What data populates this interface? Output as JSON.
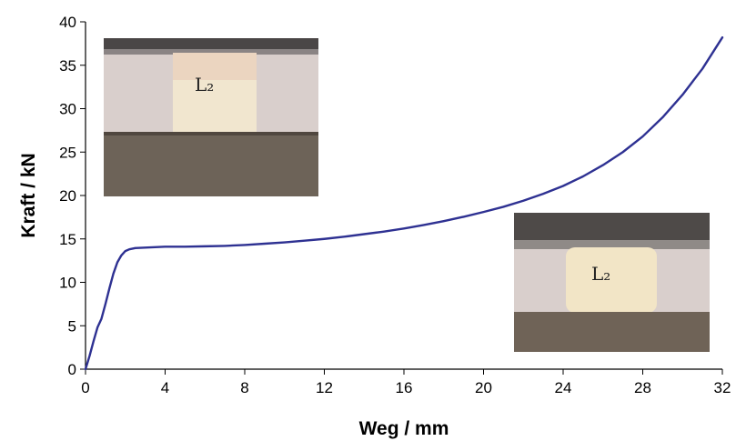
{
  "chart_data": {
    "type": "line",
    "xlabel": "Weg / mm",
    "ylabel": "Kraft / kN",
    "xlim": [
      0,
      32
    ],
    "ylim": [
      0,
      40
    ],
    "xticks": [
      0,
      4,
      8,
      12,
      16,
      20,
      24,
      28,
      32
    ],
    "yticks": [
      0,
      5,
      10,
      15,
      20,
      25,
      30,
      35,
      40
    ],
    "grid": false,
    "series": [
      {
        "color": "#2e3192",
        "x": [
          0,
          0.2,
          0.4,
          0.6,
          0.8,
          1.0,
          1.2,
          1.4,
          1.6,
          1.8,
          2.0,
          2.2,
          2.5,
          3.0,
          3.5,
          4,
          5,
          6,
          7,
          8,
          9,
          10,
          11,
          12,
          13,
          14,
          15,
          16,
          17,
          18,
          19,
          20,
          21,
          22,
          23,
          24,
          25,
          26,
          27,
          28,
          29,
          30,
          31,
          32
        ],
        "y": [
          0,
          1.5,
          3.2,
          4.8,
          5.8,
          7.5,
          9.3,
          11.0,
          12.3,
          13.1,
          13.6,
          13.8,
          13.95,
          14.0,
          14.05,
          14.1,
          14.1,
          14.15,
          14.2,
          14.3,
          14.45,
          14.6,
          14.8,
          15.0,
          15.25,
          15.55,
          15.85,
          16.2,
          16.6,
          17.05,
          17.55,
          18.1,
          18.7,
          19.4,
          20.2,
          21.1,
          22.2,
          23.5,
          25.0,
          26.8,
          29.0,
          31.6,
          34.6,
          38.2
        ]
      }
    ],
    "inset_photos": [
      {
        "label": "photo-initial-state",
        "marking": "L₂"
      },
      {
        "label": "photo-compressed-state",
        "marking": "L₂"
      }
    ]
  }
}
